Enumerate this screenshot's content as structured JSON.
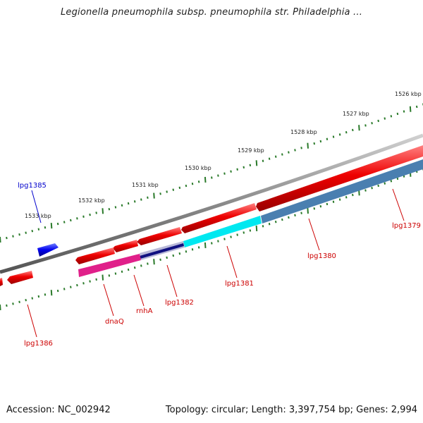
{
  "title": "Legionella pneumophila subsp. pneumophila str. Philadelphia ...",
  "footer": {
    "accession": "Accession: NC_002942",
    "summary": "Topology: circular; Length: 3,397,754 bp; Genes: 2,994"
  },
  "scale_labels": [
    "1526 kbp",
    "1527 kbp",
    "1528 kbp",
    "1529 kbp",
    "1530 kbp",
    "1531 kbp",
    "1532 kbp",
    "1533 kbp"
  ],
  "gene_labels": [
    {
      "id": "lpg1379",
      "text": "lpg1379",
      "color": "#cc0000"
    },
    {
      "id": "lpg1380",
      "text": "lpg1380",
      "color": "#cc0000"
    },
    {
      "id": "lpg1381",
      "text": "lpg1381",
      "color": "#cc0000"
    },
    {
      "id": "lpg1382",
      "text": "lpg1382",
      "color": "#cc0000"
    },
    {
      "id": "rnhA",
      "text": "rnhA",
      "color": "#cc0000"
    },
    {
      "id": "dnaQ",
      "text": "dnaQ",
      "color": "#cc0000"
    },
    {
      "id": "lpg1386",
      "text": "lpg1386",
      "color": "#cc0000"
    },
    {
      "id": "lpg1385",
      "text": "lpg1385",
      "color": "#0000cc"
    }
  ],
  "colors": {
    "backbone": "#888888",
    "forward_gene": "#ee0000",
    "tick": "#2a7a2a",
    "blue_gene": "#0000ee",
    "cyan_gene": "#00e8f0",
    "steel_gene": "#4a7fb0",
    "magenta_gene": "#e0208a",
    "navy_gene": "#101080"
  }
}
